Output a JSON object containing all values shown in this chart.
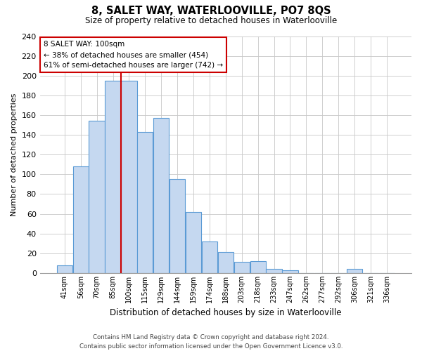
{
  "title": "8, SALET WAY, WATERLOOVILLE, PO7 8QS",
  "subtitle": "Size of property relative to detached houses in Waterlooville",
  "xlabel": "Distribution of detached houses by size in Waterlooville",
  "ylabel": "Number of detached properties",
  "categories": [
    "41sqm",
    "56sqm",
    "70sqm",
    "85sqm",
    "100sqm",
    "115sqm",
    "129sqm",
    "144sqm",
    "159sqm",
    "174sqm",
    "188sqm",
    "203sqm",
    "218sqm",
    "233sqm",
    "247sqm",
    "262sqm",
    "277sqm",
    "292sqm",
    "306sqm",
    "321sqm",
    "336sqm"
  ],
  "values": [
    8,
    108,
    154,
    195,
    195,
    143,
    157,
    95,
    62,
    32,
    21,
    11,
    12,
    4,
    3,
    0,
    0,
    0,
    4,
    0,
    0
  ],
  "bar_color": "#c5d8f0",
  "bar_edge_color": "#5b9bd5",
  "vline_x_index": 4,
  "vline_color": "#cc0000",
  "ylim": [
    0,
    240
  ],
  "yticks": [
    0,
    20,
    40,
    60,
    80,
    100,
    120,
    140,
    160,
    180,
    200,
    220,
    240
  ],
  "annotation_title": "8 SALET WAY: 100sqm",
  "annotation_line1": "← 38% of detached houses are smaller (454)",
  "annotation_line2": "61% of semi-detached houses are larger (742) →",
  "annotation_box_color": "#ffffff",
  "annotation_box_edge": "#cc0000",
  "footer_line1": "Contains HM Land Registry data © Crown copyright and database right 2024.",
  "footer_line2": "Contains public sector information licensed under the Open Government Licence v3.0.",
  "background_color": "#ffffff",
  "grid_color": "#c8c8c8"
}
